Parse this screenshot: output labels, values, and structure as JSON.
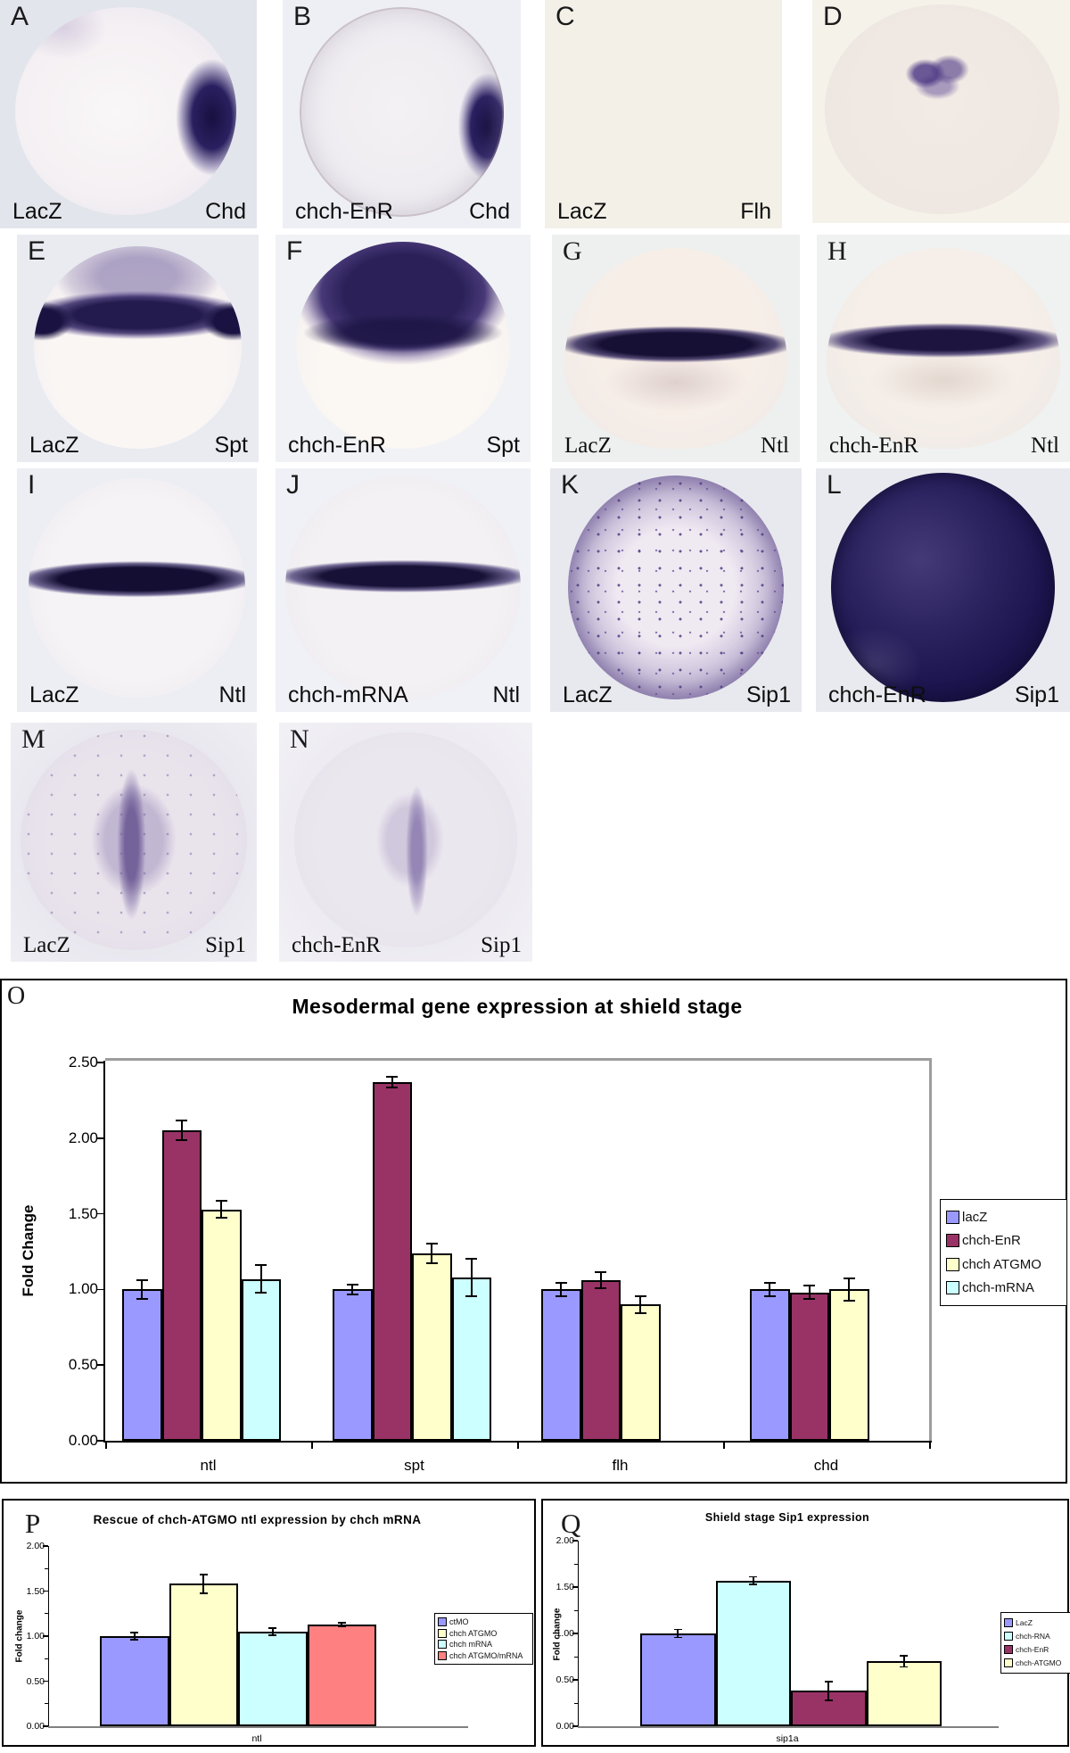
{
  "figure": {
    "panels": [
      {
        "letter": "A",
        "label_left": "LacZ",
        "label_right": "Chd"
      },
      {
        "letter": "B",
        "label_left": "chch-EnR",
        "label_right": "Chd"
      },
      {
        "letter": "C",
        "label_left": "LacZ",
        "label_right": "Flh"
      },
      {
        "letter": "D",
        "label_left": "",
        "label_right": ""
      },
      {
        "letter": "E",
        "label_left": "LacZ",
        "label_right": "Spt"
      },
      {
        "letter": "F",
        "label_left": "chch-EnR",
        "label_right": "Spt"
      },
      {
        "letter": "G",
        "label_left": "LacZ",
        "label_right": "Ntl"
      },
      {
        "letter": "H",
        "label_left": "chch-EnR",
        "label_right": "Ntl"
      },
      {
        "letter": "I",
        "label_left": "LacZ",
        "label_right": "Ntl"
      },
      {
        "letter": "J",
        "label_left": "chch-mRNA",
        "label_right": "Ntl"
      },
      {
        "letter": "K",
        "label_left": "LacZ",
        "label_right": "Sip1"
      },
      {
        "letter": "L",
        "label_left": "chch-EnR",
        "label_right": "Sip1"
      },
      {
        "letter": "M",
        "label_left": "LacZ",
        "label_right": "Sip1"
      },
      {
        "letter": "N",
        "label_left": "chch-EnR",
        "label_right": "Sip1"
      }
    ]
  },
  "chart_data": [
    {
      "panel_letter": "O",
      "type": "bar",
      "title": "Mesodermal gene expression at shield stage",
      "xlabel": "",
      "ylabel": "Fold Change",
      "categories": [
        "ntl",
        "spt",
        "flh",
        "chd"
      ],
      "series": [
        {
          "name": "lacZ",
          "color": "#9999FF",
          "values": [
            1.0,
            1.0,
            1.0,
            1.0
          ],
          "errors": [
            0.07,
            0.04,
            0.05,
            0.05
          ]
        },
        {
          "name": "chch-EnR",
          "color": "#993366",
          "values": [
            2.05,
            2.37,
            1.06,
            0.98
          ],
          "errors": [
            0.07,
            0.04,
            0.06,
            0.05
          ]
        },
        {
          "name": "chch ATGMO",
          "color": "#FFFFCC",
          "values": [
            1.53,
            1.24,
            0.9,
            1.0
          ],
          "errors": [
            0.06,
            0.07,
            0.06,
            0.08
          ]
        },
        {
          "name": "chch-mRNA",
          "color": "#CCFFFF",
          "values": [
            1.07,
            1.08,
            null,
            null
          ],
          "errors": [
            0.1,
            0.13,
            null,
            null
          ]
        }
      ],
      "ylim": [
        0,
        2.5
      ],
      "yticks": [
        "0.00",
        "0.50",
        "1.00",
        "1.50",
        "2.00",
        "2.50"
      ],
      "grid": false,
      "legend_position": "right"
    },
    {
      "panel_letter": "P",
      "type": "bar",
      "title": "Rescue of chch-ATGMO ntl expression by chch mRNA",
      "xlabel": "",
      "ylabel": "Fold change",
      "categories": [
        "ntl"
      ],
      "series": [
        {
          "name": "ctMO",
          "color": "#9999FF",
          "values": [
            1.0
          ],
          "errors": [
            0.05
          ]
        },
        {
          "name": "chch ATGMO",
          "color": "#FFFFCC",
          "values": [
            1.58
          ],
          "errors": [
            0.11
          ]
        },
        {
          "name": "chch mRNA",
          "color": "#CCFFFF",
          "values": [
            1.05
          ],
          "errors": [
            0.05
          ]
        },
        {
          "name": "chch ATGMO/mRNA",
          "color": "#FF8080",
          "values": [
            1.13
          ],
          "errors": [
            0.03
          ]
        }
      ],
      "ylim": [
        0,
        2.0
      ],
      "yticks": [
        "0.00",
        "0.50",
        "1.00",
        "1.50",
        "2.00"
      ],
      "grid": false,
      "legend_position": "right"
    },
    {
      "panel_letter": "Q",
      "type": "bar",
      "title": "Shield stage Sip1 expression",
      "xlabel": "",
      "ylabel": "Fold change",
      "categories": [
        "sip1a"
      ],
      "series": [
        {
          "name": "LacZ",
          "color": "#9999FF",
          "values": [
            1.0
          ],
          "errors": [
            0.05
          ]
        },
        {
          "name": "chch-RNA",
          "color": "#CCFFFF",
          "values": [
            1.57
          ],
          "errors": [
            0.05
          ]
        },
        {
          "name": "chch-EnR",
          "color": "#993366",
          "values": [
            0.38
          ],
          "errors": [
            0.11
          ]
        },
        {
          "name": "chch-ATGMO",
          "color": "#FFFFCC",
          "values": [
            0.7
          ],
          "errors": [
            0.07
          ]
        }
      ],
      "ylim": [
        0,
        2.0
      ],
      "yticks": [
        "0.00",
        "0.50",
        "1.00",
        "1.50",
        "2.00"
      ],
      "grid": false,
      "legend_position": "right"
    }
  ]
}
